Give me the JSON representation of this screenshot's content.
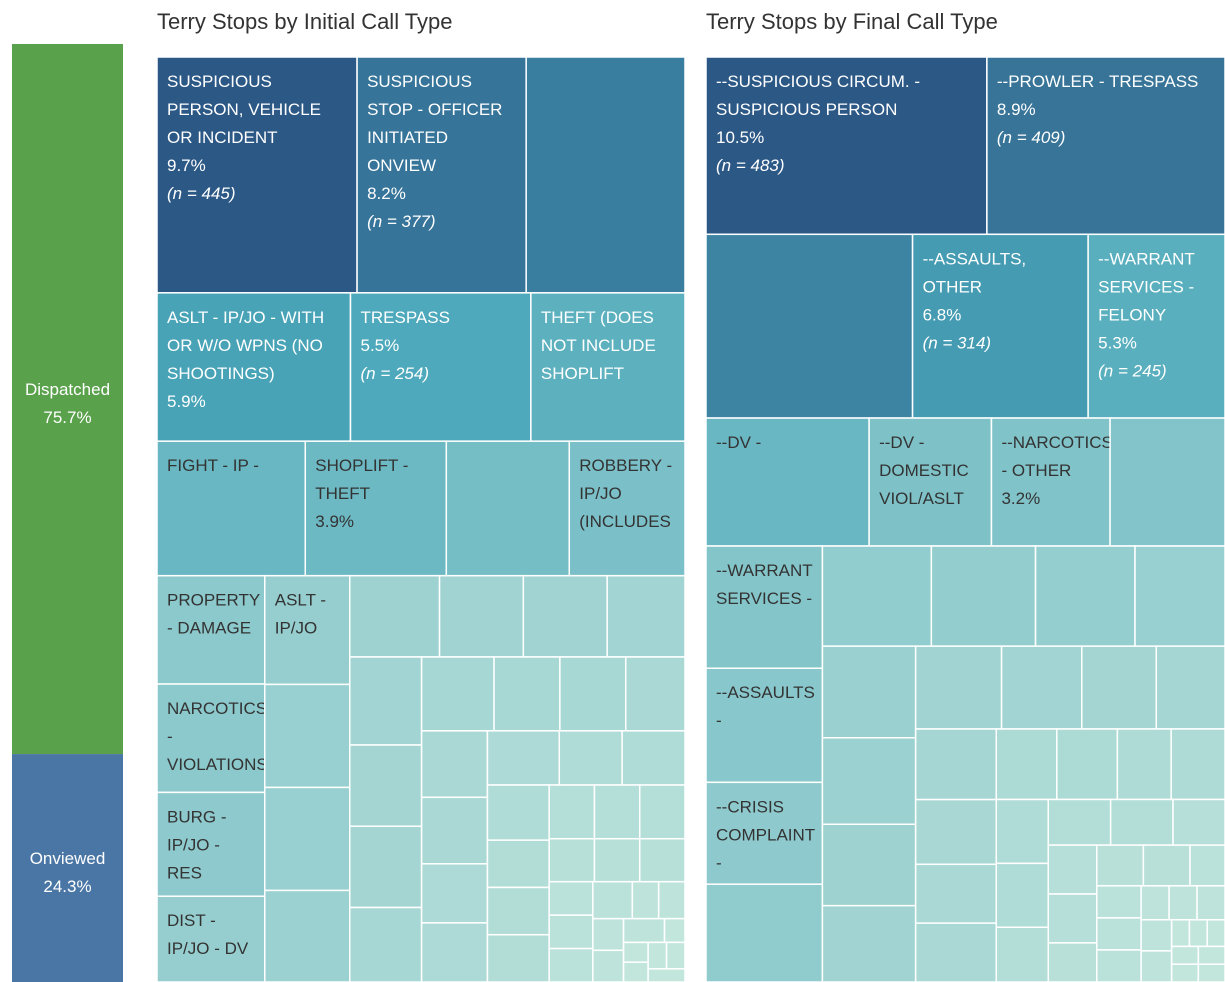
{
  "chart_data": [
    {
      "type": "stacked-bar",
      "categories": [
        "Dispatched",
        "Onviewed"
      ],
      "values": [
        75.7,
        24.3
      ],
      "value_labels": [
        "75.7%",
        "24.3%"
      ],
      "colors": [
        "#5aa14c",
        "#4a76a5"
      ]
    },
    {
      "type": "treemap",
      "title": "Terry Stops by Initial Call Type",
      "color_stops": [
        "#c3e6dc",
        "#8ecacd",
        "#4aa7ba",
        "#2c5886"
      ],
      "items": [
        {
          "name": "SUSPICIOUS PERSON, VEHICLE OR INCIDENT",
          "value": 9.7,
          "value_label": "9.7%",
          "n": 445,
          "n_label": "(n = 445)"
        },
        {
          "name": "SUSPICIOUS STOP - OFFICER INITIATED ONVIEW",
          "value": 8.2,
          "value_label": "8.2%",
          "n": 377,
          "n_label": "(n = 377)"
        },
        {
          "value": 7.7
        },
        {
          "name": "ASLT - IP/JO - WITH OR W/O WPNS (NO SHOOTINGS)",
          "value": 5.9,
          "value_label": "5.9%"
        },
        {
          "name": "TRESPASS",
          "value": 5.5,
          "value_label": "5.5%",
          "n": 254,
          "n_label": "(n = 254)"
        },
        {
          "name": "THEFT (DOES NOT INCLUDE SHOPLIFT",
          "value": 4.7
        },
        {
          "name": "FIGHT - IP -",
          "value": 4.1
        },
        {
          "name": "SHOPLIFT - THEFT",
          "value": 3.9,
          "value_label": "3.9%"
        },
        {
          "value": 3.4
        },
        {
          "name": "ROBBERY - IP/JO (INCLUDES",
          "value": 3.2
        },
        {
          "name": "PROPERTY - DAMAGE",
          "value": 2.4
        },
        {
          "name": "NARCOTICS - VIOLATIONS",
          "value": 2.4
        },
        {
          "name": "BURG - IP/JO - RES",
          "value": 2.3
        },
        {
          "name": "DIST - IP/JO - DV",
          "value": 1.9
        },
        {
          "name": "ASLT - IP/JO",
          "value": 1.9
        },
        {
          "value": 1.8
        },
        {
          "value": 1.8
        },
        {
          "value": 1.6
        },
        {
          "value": 1.5
        },
        {
          "value": 1.4
        },
        {
          "value": 1.4
        },
        {
          "value": 1.3
        },
        {
          "value": 1.3
        },
        {
          "value": 1.2
        },
        {
          "value": 1.2
        },
        {
          "value": 1.1
        },
        {
          "value": 1.1
        },
        {
          "value": 1.0
        },
        {
          "value": 1.0
        },
        {
          "value": 0.9
        },
        {
          "value": 0.9
        },
        {
          "value": 0.9
        },
        {
          "value": 0.8
        },
        {
          "value": 0.8
        },
        {
          "value": 0.8
        },
        {
          "value": 0.7
        },
        {
          "value": 0.7
        },
        {
          "value": 0.7
        },
        {
          "value": 0.6
        },
        {
          "value": 0.6
        },
        {
          "value": 0.6
        },
        {
          "value": 0.5
        },
        {
          "value": 0.5
        },
        {
          "value": 0.5
        },
        {
          "value": 0.4
        },
        {
          "value": 0.4
        },
        {
          "value": 0.4
        },
        {
          "value": 0.3
        },
        {
          "value": 0.3
        },
        {
          "value": 0.3
        },
        {
          "value": 0.3
        },
        {
          "value": 0.2
        },
        {
          "value": 0.2
        },
        {
          "value": 0.2
        },
        {
          "value": 0.2
        },
        {
          "value": 0.2
        },
        {
          "value": 0.1
        },
        {
          "value": 0.1
        },
        {
          "value": 0.1
        },
        {
          "value": 0.1
        },
        {
          "value": 0.1
        },
        {
          "value": 0.1
        }
      ]
    },
    {
      "type": "treemap",
      "title": "Terry Stops by Final Call Type",
      "color_stops": [
        "#c3e6dc",
        "#8ecacd",
        "#4aa7ba",
        "#2c5886"
      ],
      "items": [
        {
          "name": "--SUSPICIOUS CIRCUM. - SUSPICIOUS PERSON",
          "value": 10.5,
          "value_label": "10.5%",
          "n": 483,
          "n_label": "(n = 483)"
        },
        {
          "name": "--PROWLER - TRESPASS",
          "value": 8.9,
          "value_label": "8.9%",
          "n": 409,
          "n_label": "(n = 409)"
        },
        {
          "value": 8.0
        },
        {
          "name": "--ASSAULTS, OTHER",
          "value": 6.8,
          "value_label": "6.8%",
          "n": 314,
          "n_label": "(n = 314)"
        },
        {
          "name": "--WARRANT SERVICES - FELONY",
          "value": 5.3,
          "value_label": "5.3%",
          "n": 245,
          "n_label": "(n = 245)"
        },
        {
          "name": "--DV -",
          "value": 4.4
        },
        {
          "name": "--DV - DOMESTIC VIOL/ASLT",
          "value": 3.3
        },
        {
          "name": "--NARCOTICS - OTHER",
          "value": 3.2,
          "value_label": "3.2%"
        },
        {
          "value": 3.1
        },
        {
          "name": "--WARRANT SERVICES -",
          "value": 3.0
        },
        {
          "name": "--ASSAULTS -",
          "value": 2.8
        },
        {
          "name": "--CRISIS COMPLAINT -",
          "value": 2.5
        },
        {
          "value": 2.4
        },
        {
          "value": 2.3
        },
        {
          "value": 2.2
        },
        {
          "value": 2.1
        },
        {
          "value": 1.9
        },
        {
          "value": 1.8
        },
        {
          "value": 1.7
        },
        {
          "value": 1.6
        },
        {
          "value": 1.5
        },
        {
          "value": 1.5
        },
        {
          "value": 1.4
        },
        {
          "value": 1.3
        },
        {
          "value": 1.2
        },
        {
          "value": 1.2
        },
        {
          "value": 1.1
        },
        {
          "value": 1.0
        },
        {
          "value": 1.0
        },
        {
          "value": 0.9
        },
        {
          "value": 0.9
        },
        {
          "value": 0.8
        },
        {
          "value": 0.8
        },
        {
          "value": 0.7
        },
        {
          "value": 0.7
        },
        {
          "value": 0.6
        },
        {
          "value": 0.6
        },
        {
          "value": 0.6
        },
        {
          "value": 0.5
        },
        {
          "value": 0.5
        },
        {
          "value": 0.5
        },
        {
          "value": 0.4
        },
        {
          "value": 0.4
        },
        {
          "value": 0.4
        },
        {
          "value": 0.3
        },
        {
          "value": 0.3
        },
        {
          "value": 0.3
        },
        {
          "value": 0.3
        },
        {
          "value": 0.2
        },
        {
          "value": 0.2
        },
        {
          "value": 0.2
        },
        {
          "value": 0.2
        },
        {
          "value": 0.2
        },
        {
          "value": 0.1
        },
        {
          "value": 0.1
        },
        {
          "value": 0.1
        },
        {
          "value": 0.1
        },
        {
          "value": 0.1
        },
        {
          "value": 0.1
        },
        {
          "value": 0.1
        }
      ]
    }
  ]
}
